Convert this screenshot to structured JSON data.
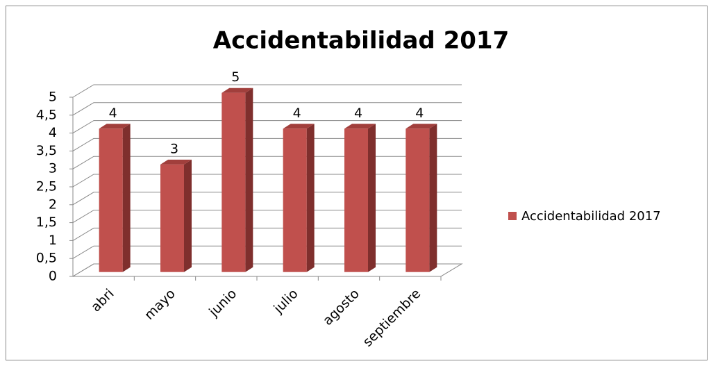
{
  "chart_data": {
    "type": "bar3d",
    "title": "Accidentabilidad 2017",
    "categories": [
      "abri",
      "mayo",
      "junio",
      "julio",
      "agosto",
      "septiembre"
    ],
    "series": [
      {
        "name": "Accidentabilidad 2017",
        "color": "#c0504d",
        "values": [
          4,
          3,
          5,
          4,
          4,
          4
        ]
      }
    ],
    "ylim": [
      0,
      5
    ],
    "yticks": [
      0,
      {
        "value": 0.5,
        "label": "0,5"
      },
      1,
      {
        "value": 1.5,
        "label": "1,5"
      },
      2,
      {
        "value": 2.5,
        "label": "2,5"
      },
      3,
      {
        "value": 3.5,
        "label": "3,5"
      },
      4,
      {
        "value": 4.5,
        "label": "4,5"
      },
      5
    ],
    "grid": true,
    "legend": "right"
  }
}
